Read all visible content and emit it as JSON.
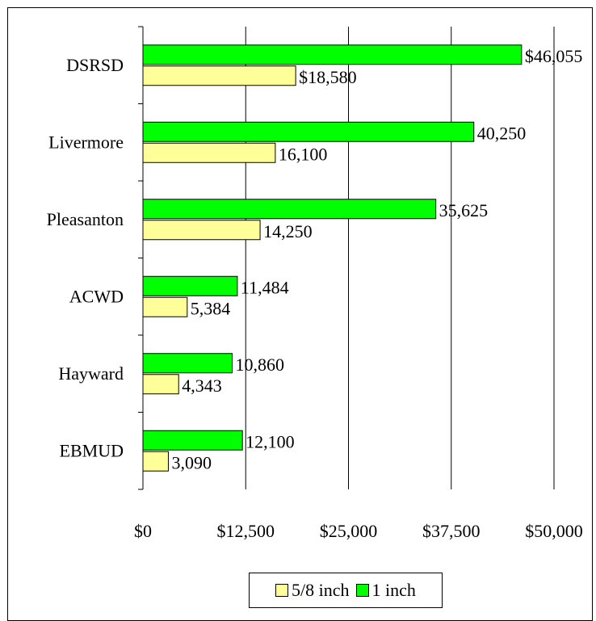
{
  "chart_data": {
    "type": "bar",
    "orientation": "horizontal",
    "categories": [
      "DSRSD",
      "Livermore",
      "Pleasanton",
      "ACWD",
      "Hayward",
      "EBMUD"
    ],
    "series": [
      {
        "name": "1 inch",
        "color": "#00ff00",
        "values": [
          46055,
          40250,
          35625,
          11484,
          10860,
          12100
        ],
        "labels": [
          "$46,055",
          "40,250",
          "35,625",
          "11,484",
          "10,860",
          "12,100"
        ]
      },
      {
        "name": "5/8 inch",
        "color": "#ffff99",
        "values": [
          18580,
          16100,
          14250,
          5384,
          4343,
          3090
        ],
        "labels": [
          "$18,580",
          "16,100",
          "14,250",
          "5,384",
          "4,343",
          "3,090"
        ]
      }
    ],
    "xlim": [
      0,
      50000
    ],
    "x_ticks": [
      0,
      12500,
      25000,
      37500,
      50000
    ],
    "x_tick_labels": [
      "$0",
      "$12,500",
      "$25,000",
      "$37,500",
      "$50,000"
    ],
    "grid": "vertical",
    "legend_position": "bottom",
    "legend": [
      {
        "name": "5/8 inch",
        "color": "#ffff99"
      },
      {
        "name": "1 inch",
        "color": "#00ff00"
      }
    ]
  }
}
